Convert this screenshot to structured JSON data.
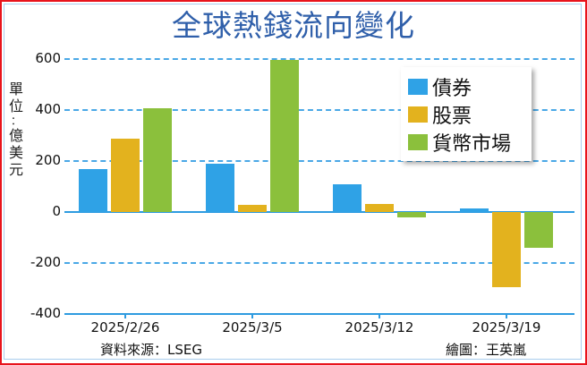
{
  "title": "全球熱錢流向變化",
  "unit_label": "單位：億美元",
  "unit_chars": [
    "單",
    "位",
    "：",
    "億",
    "美",
    "元"
  ],
  "y_ticks": [
    "600",
    "400",
    "200",
    "0",
    "-200",
    "-400"
  ],
  "legend": [
    {
      "label": "債券",
      "color": "#2fa2e6"
    },
    {
      "label": "股票",
      "color": "#e3b21e"
    },
    {
      "label": "貨幣市場",
      "color": "#8bc03c"
    }
  ],
  "source": "資料來源：LSEG",
  "credit": "繪圖：王英嵐",
  "chart_data": {
    "type": "bar",
    "title": "全球熱錢流向變化",
    "xlabel": "",
    "ylabel": "單位：億美元",
    "ylim": [
      -400,
      600
    ],
    "yticks": [
      600,
      400,
      200,
      0,
      -200,
      -400
    ],
    "grid": true,
    "legend_position": "upper right",
    "categories": [
      "2025/2/26",
      "2025/3/5",
      "2025/3/12",
      "2025/3/19"
    ],
    "series": [
      {
        "name": "債券",
        "color": "#2fa2e6",
        "values": [
          170,
          188,
          108,
          15
        ]
      },
      {
        "name": "股票",
        "color": "#e3b21e",
        "values": [
          288,
          29,
          30,
          -295
        ]
      },
      {
        "name": "貨幣市場",
        "color": "#8bc03c",
        "values": [
          408,
          597,
          -20,
          -141
        ]
      }
    ],
    "annotations": [
      "資料來源：LSEG",
      "繪圖：王英嵐"
    ]
  }
}
